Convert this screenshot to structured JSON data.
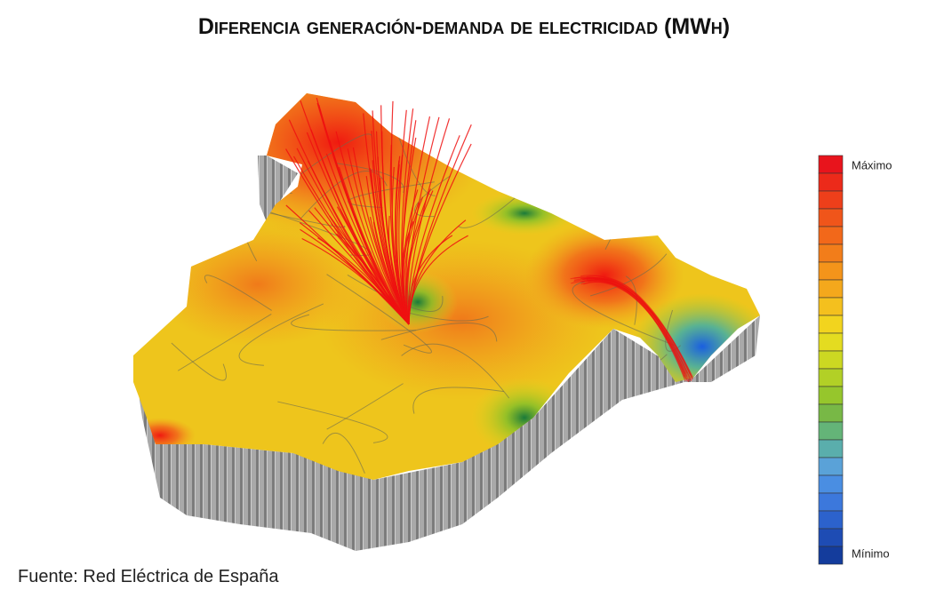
{
  "title": "Diferencia generación-demanda de electricidad (MWh)",
  "legend": {
    "max_label": "Máximo",
    "min_label": "Mínimo"
  },
  "source": "Fuente: Red Eléctrica de España"
}
